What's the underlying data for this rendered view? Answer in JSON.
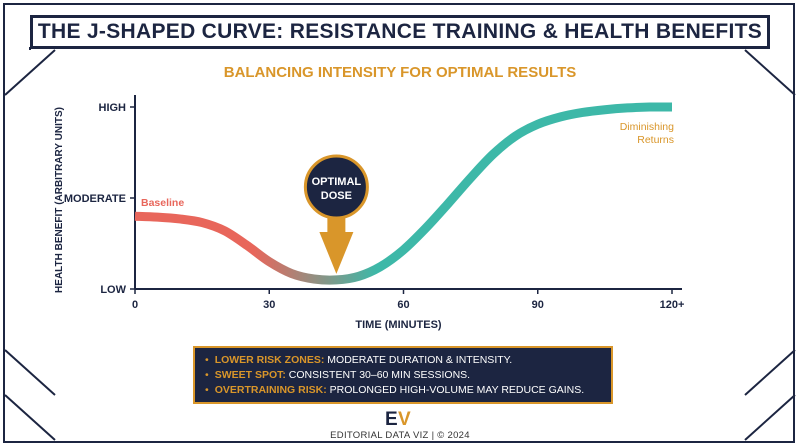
{
  "header": {
    "title": "THE J-SHAPED CURVE: RESISTANCE TRAINING & HEALTH BENEFITS",
    "subtitle": "BALANCING INTENSITY FOR OPTIMAL RESULTS"
  },
  "chart_data": {
    "type": "line",
    "title": "THE J-SHAPED CURVE: RESISTANCE TRAINING & HEALTH BENEFITS",
    "subtitle": "BALANCING INTENSITY FOR OPTIMAL RESULTS",
    "xlabel": "TIME (MINUTES)",
    "ylabel": "HEALTH BENEFIT (ARBITRARY UNITS)",
    "x_ticks": [
      {
        "value": 0,
        "label": "0"
      },
      {
        "value": 30,
        "label": "30"
      },
      {
        "value": 60,
        "label": "60"
      },
      {
        "value": 90,
        "label": "90"
      },
      {
        "value": 120,
        "label": "120+"
      }
    ],
    "y_ticks": [
      {
        "value": 0,
        "label": "LOW"
      },
      {
        "value": 1,
        "label": "MODERATE"
      },
      {
        "value": 2,
        "label": "HIGH"
      }
    ],
    "xlim": [
      0,
      120
    ],
    "ylim": [
      0,
      2
    ],
    "grid": false,
    "series": [
      {
        "x": [
          0,
          5,
          10,
          15,
          20,
          25,
          30,
          35,
          40,
          45,
          50,
          55,
          60,
          65,
          70,
          75,
          80,
          85,
          90,
          95,
          100,
          105,
          110,
          115,
          120
        ],
        "y": [
          0.8,
          0.79,
          0.77,
          0.73,
          0.64,
          0.48,
          0.3,
          0.17,
          0.11,
          0.1,
          0.14,
          0.25,
          0.43,
          0.67,
          0.94,
          1.22,
          1.48,
          1.68,
          1.81,
          1.89,
          1.94,
          1.97,
          1.99,
          2.0,
          2.0
        ]
      }
    ],
    "annotations": {
      "baseline": {
        "x": 0,
        "y": 0.8,
        "text": "Baseline"
      },
      "optimal": {
        "x": 45,
        "y": 0.1,
        "line1": "OPTIMAL",
        "line2": "DOSE"
      },
      "diminishing": {
        "x": 120,
        "y": 2.0,
        "line1": "Diminishing",
        "line2": "Returns"
      }
    },
    "colors": {
      "start": "#e8665b",
      "end": "#3db8a8",
      "accent": "#d9962a",
      "navy": "#1c2541"
    }
  },
  "legend": {
    "items": [
      {
        "key": "LOWER RISK ZONES:",
        "text": " MODERATE DURATION & INTENSITY."
      },
      {
        "key": "SWEET SPOT:",
        "text": " CONSISTENT 30–60 MIN SESSIONS."
      },
      {
        "key": "OVERTRAINING RISK:",
        "text": " PROLONGED HIGH-VOLUME MAY REDUCE GAINS."
      }
    ],
    "bullet": "•"
  },
  "footer": {
    "logo_text": "EV",
    "text": "EDITORIAL DATA VIZ | © 2024"
  }
}
